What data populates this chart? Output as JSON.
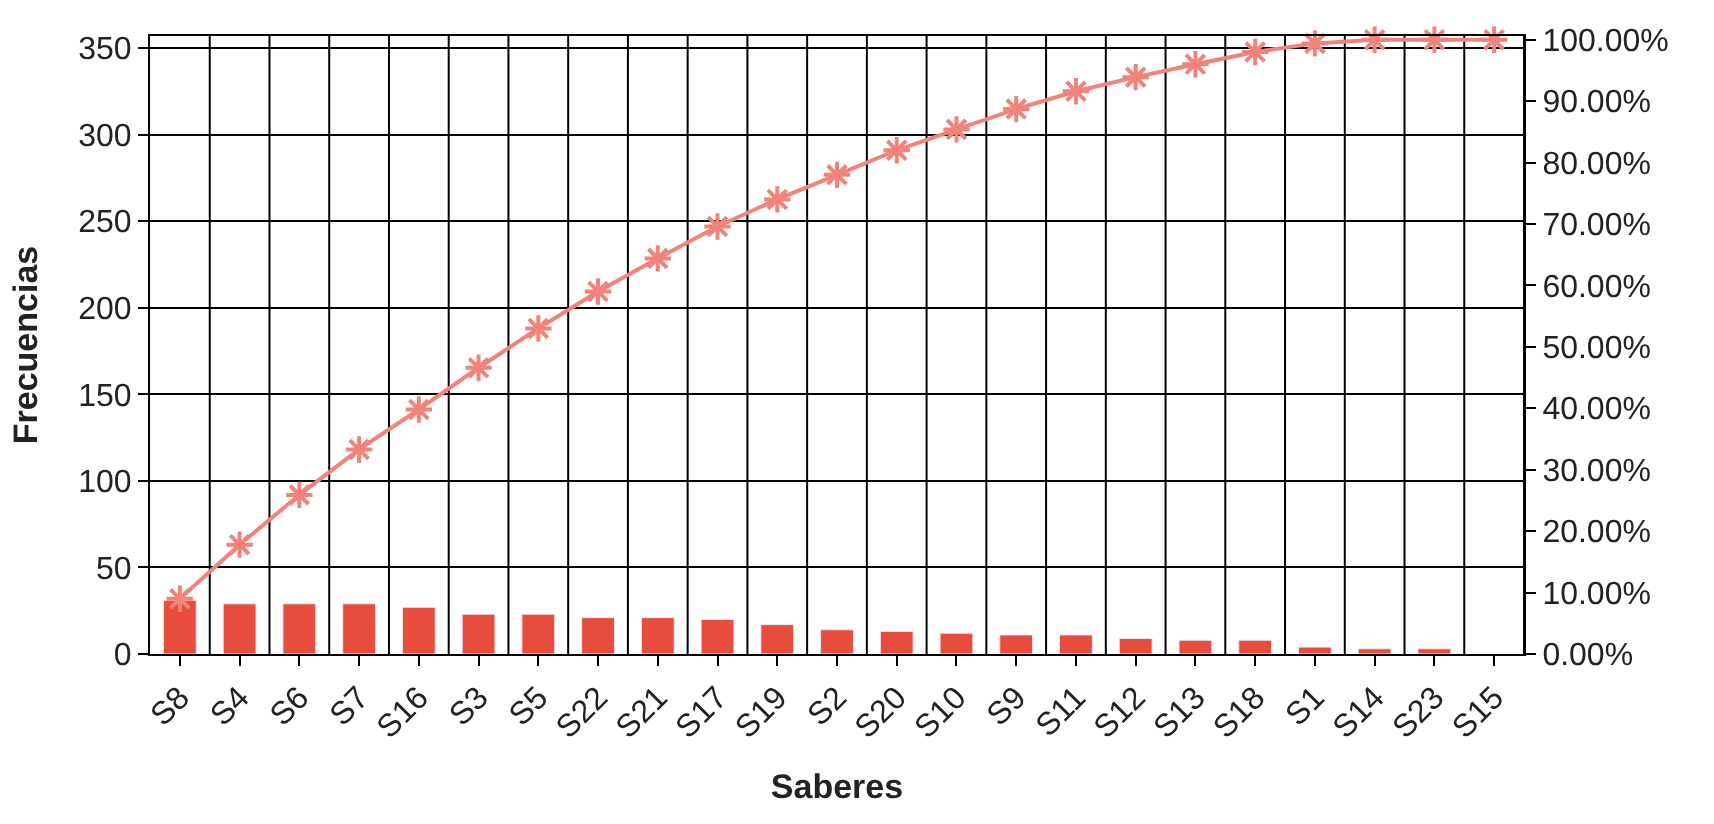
{
  "chart_data": {
    "type": "bar",
    "xlabel": "Saberes",
    "ylabel": "Frecuencias",
    "categories": [
      "S8",
      "S4",
      "S6",
      "S7",
      "S16",
      "S3",
      "S5",
      "S22",
      "S21",
      "S17",
      "S19",
      "S2",
      "S20",
      "S10",
      "S9",
      "S11",
      "S12",
      "S13",
      "S18",
      "S1",
      "S14",
      "S23",
      "S15"
    ],
    "series": [
      {
        "color": "#e84c3d",
        "values": [
          31,
          29,
          29,
          29,
          27,
          23,
          23,
          21,
          21,
          20,
          17,
          14,
          13,
          12,
          11,
          11,
          9,
          8,
          8,
          4,
          3,
          3,
          null
        ]
      },
      {
        "type": "line",
        "axis": "y2",
        "color": "#f1837a",
        "marker": "cross",
        "line_style": "solid",
        "values": [
          9,
          17.8,
          25.9,
          33.3,
          39.8,
          46.6,
          53,
          59,
          64.4,
          69.6,
          74,
          78,
          82,
          85.4,
          88.7,
          91.6,
          93.9,
          96,
          98,
          99.4,
          100,
          100,
          100
        ]
      }
    ],
    "ylim": [
      0,
      357
    ],
    "yticks": [
      0,
      50,
      100,
      150,
      200,
      250,
      300,
      350
    ],
    "y2lim": [
      0,
      100.6
    ],
    "y2ticks": [
      {
        "value": 0,
        "label": "0.00%"
      },
      {
        "value": 10,
        "label": "10.00%"
      },
      {
        "value": 20,
        "label": "20.00%"
      },
      {
        "value": 30,
        "label": "30.00%"
      },
      {
        "value": 40,
        "label": "40.00%"
      },
      {
        "value": 50,
        "label": "50.00%"
      },
      {
        "value": 60,
        "label": "60.00%"
      },
      {
        "value": 70,
        "label": "70.00%"
      },
      {
        "value": 80,
        "label": "80.00%"
      },
      {
        "value": 90,
        "label": "90.00%"
      },
      {
        "value": 100,
        "label": "100.00%"
      }
    ],
    "grid": true
  }
}
